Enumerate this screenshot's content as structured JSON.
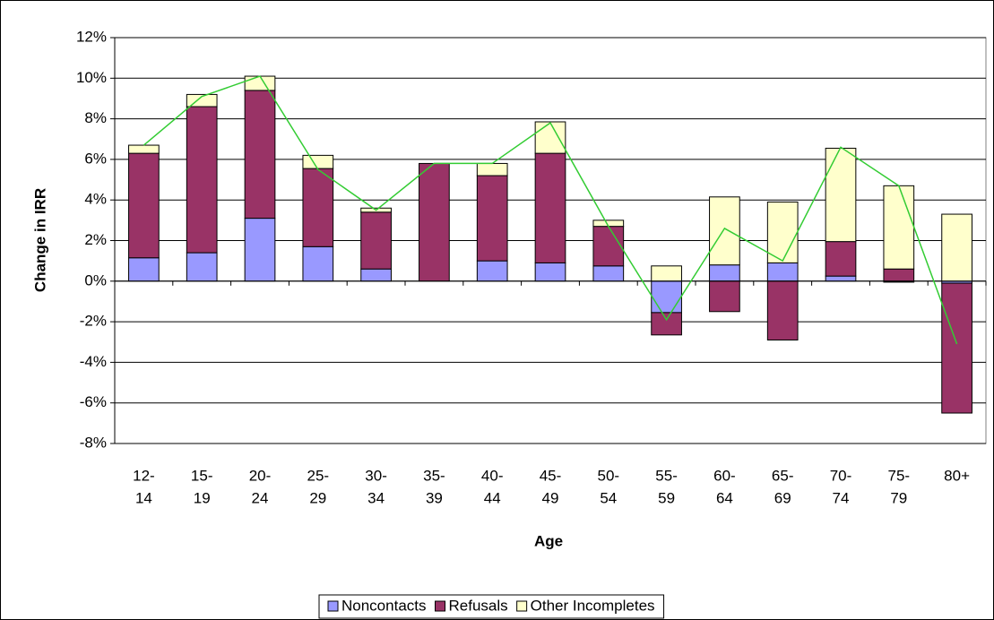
{
  "chart_data": {
    "type": "bar",
    "stacked": true,
    "x_label": "Age",
    "y_label": "Change in IRR",
    "categories": [
      [
        "12-",
        "14"
      ],
      [
        "15-",
        "19"
      ],
      [
        "20-",
        "24"
      ],
      [
        "25-",
        "29"
      ],
      [
        "30-",
        "34"
      ],
      [
        "35-",
        "39"
      ],
      [
        "40-",
        "44"
      ],
      [
        "45-",
        "49"
      ],
      [
        "50-",
        "54"
      ],
      [
        "55-",
        "59"
      ],
      [
        "60-",
        "64"
      ],
      [
        "65-",
        "69"
      ],
      [
        "70-",
        "74"
      ],
      [
        "75-",
        "79"
      ],
      [
        "80+"
      ]
    ],
    "series": [
      {
        "name": "Noncontacts",
        "color": "#9999ff",
        "values": [
          1.15,
          1.4,
          3.1,
          1.7,
          0.6,
          0,
          1.0,
          0.9,
          0.75,
          -1.55,
          0.8,
          0.9,
          0.25,
          -0.05,
          -0.1
        ]
      },
      {
        "name": "Refusals",
        "color": "#993366",
        "values": [
          5.15,
          7.2,
          6.3,
          3.85,
          2.8,
          5.8,
          4.2,
          5.4,
          1.95,
          -1.1,
          -1.5,
          -2.9,
          1.7,
          0.6,
          -6.4
        ]
      },
      {
        "name": "Other Incompletes",
        "color": "#ffffcc",
        "values": [
          0.4,
          0.6,
          0.7,
          0.65,
          0.2,
          0,
          0.6,
          1.55,
          0.3,
          0.75,
          3.35,
          3.0,
          4.6,
          4.1,
          3.3
        ]
      }
    ],
    "line": {
      "color": "#33cc33",
      "values": [
        6.7,
        9.1,
        10.1,
        5.5,
        3.5,
        5.8,
        5.8,
        7.8,
        2.7,
        -1.9,
        2.6,
        1.0,
        6.6,
        4.7,
        -3.1
      ]
    },
    "ylim": [
      -8,
      12
    ],
    "yticks": [
      {
        "value": -8,
        "label": "-8%"
      },
      {
        "value": -6,
        "label": "-6%"
      },
      {
        "value": -4,
        "label": "-4%"
      },
      {
        "value": -2,
        "label": "-2%"
      },
      {
        "value": 0,
        "label": "0%"
      },
      {
        "value": 2,
        "label": "2%"
      },
      {
        "value": 4,
        "label": "4%"
      },
      {
        "value": 6,
        "label": "6%"
      },
      {
        "value": 8,
        "label": "8%"
      },
      {
        "value": 10,
        "label": "10%"
      },
      {
        "value": 12,
        "label": "12%"
      }
    ],
    "grid": true,
    "legend_position": "bottom"
  }
}
